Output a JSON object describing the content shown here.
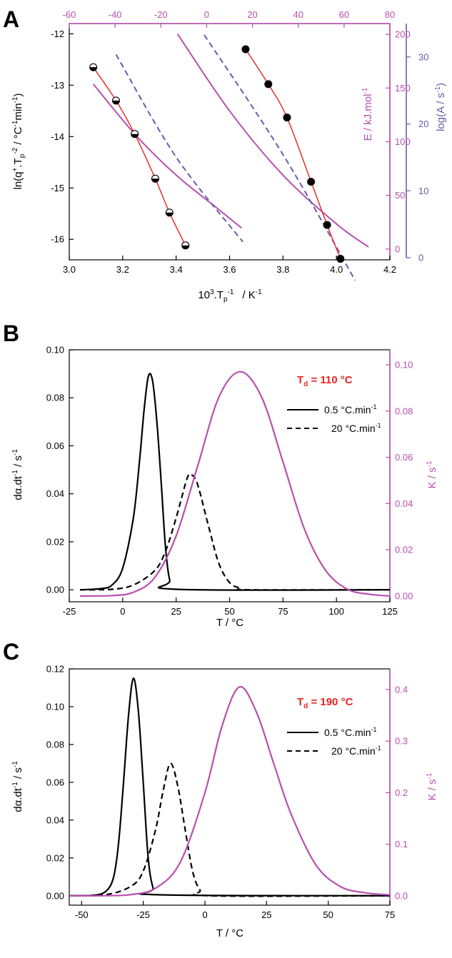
{
  "colors": {
    "axis": "#000000",
    "magenta": "#b84fb0",
    "purple": "#6a5aaa",
    "fit": "#e8231e",
    "highlight": "#e8231e"
  },
  "chart_data": [
    {
      "panel": "A",
      "type": "scatter",
      "xlabel": "10³.Tₚ⁻¹   /   K⁻¹",
      "ylabel": "ln(q⁺.Tₚ⁻² / °C⁻¹min⁻¹)",
      "y2label": "E  /  kJ.mol⁻¹",
      "y3label": "log(A / s⁻¹)",
      "xlim": [
        3.0,
        4.2
      ],
      "ylim": [
        -16.4,
        -11.8
      ],
      "x2lim": [
        -60,
        80
      ],
      "y2lim": [
        -10,
        210
      ],
      "y3lim": [
        0,
        35
      ],
      "xticks": [
        "3.0",
        "3.2",
        "3.4",
        "3.6",
        "3.8",
        "4.0",
        "4.2"
      ],
      "yticks": [
        "-12",
        "-13",
        "-14",
        "-15",
        "-16"
      ],
      "x2ticks": [
        "-60",
        "-40",
        "-20",
        "0",
        "20",
        "40",
        "60",
        "80"
      ],
      "y2ticks": [
        "0",
        "50",
        "100",
        "150",
        "200"
      ],
      "y3ticks": [
        "0",
        "10",
        "20",
        "30"
      ],
      "series": [
        {
          "marker": "half-filled",
          "x": [
            3.09,
            3.175,
            3.245,
            3.322,
            3.375,
            3.435
          ],
          "y": [
            -12.65,
            -13.3,
            -13.95,
            -14.82,
            -15.48,
            -16.12
          ]
        },
        {
          "marker": "filled",
          "x": [
            3.66,
            3.745,
            3.815,
            3.905,
            3.965,
            4.015
          ],
          "y": [
            -12.3,
            -12.98,
            -13.63,
            -14.88,
            -15.72,
            -16.38
          ]
        }
      ],
      "curves": [
        {
          "color": "magenta",
          "dash": false,
          "x": [
            3.09,
            3.25,
            3.4,
            3.55,
            3.645
          ],
          "y": [
            -12.98,
            -13.98,
            -14.75,
            -15.38,
            -15.78
          ]
        },
        {
          "color": "magenta",
          "dash": false,
          "x": [
            3.405,
            3.6,
            3.8,
            4.0,
            4.12
          ],
          "y": [
            -12.0,
            -13.5,
            -14.75,
            -15.7,
            -16.15
          ]
        },
        {
          "color": "purple",
          "dash": true,
          "x": [
            3.175,
            3.4,
            3.65
          ],
          "y": [
            -12.4,
            -14.4,
            -16.05
          ]
        },
        {
          "color": "purple",
          "dash": true,
          "x": [
            3.505,
            3.8,
            4.07
          ],
          "y": [
            -12.02,
            -14.35,
            -16.8
          ]
        }
      ]
    },
    {
      "panel": "B",
      "type": "line",
      "xlabel": "T   /   °C",
      "ylabel": "dα.dt⁻¹   /   s⁻¹",
      "y2label": "K  /  s⁻¹",
      "annotation": "Td = 110 °C",
      "xlim": [
        -25,
        125
      ],
      "ylim": [
        -0.005,
        0.1
      ],
      "y2lim": [
        -0.0025,
        0.1065
      ],
      "xticks": [
        "-25",
        "0",
        "25",
        "50",
        "75",
        "100",
        "125"
      ],
      "yticks": [
        "0.00",
        "0.02",
        "0.04",
        "0.06",
        "0.08",
        "0.10"
      ],
      "y2ticks": [
        "0.00",
        "0.02",
        "0.04",
        "0.06",
        "0.08",
        "0.10"
      ],
      "legend": [
        "0.5 °C.min⁻¹",
        "20 °C.min⁻¹"
      ],
      "series": [
        {
          "name": "0.5 °C.min⁻¹",
          "x": [
            -20,
            -10,
            -5,
            0,
            5,
            8,
            10,
            12,
            14,
            16,
            18,
            20,
            22,
            25,
            125
          ],
          "y": [
            0.0,
            0.0005,
            0.002,
            0.009,
            0.03,
            0.055,
            0.075,
            0.089,
            0.087,
            0.07,
            0.045,
            0.018,
            0.004,
            0.0002,
            0.0
          ]
        },
        {
          "name": "20 °C.min⁻¹",
          "x": [
            -20,
            -5,
            5,
            15,
            20,
            25,
            30,
            32,
            35,
            40,
            45,
            50,
            55,
            60,
            125
          ],
          "y": [
            0.0,
            0.0002,
            0.002,
            0.008,
            0.016,
            0.03,
            0.046,
            0.048,
            0.044,
            0.027,
            0.011,
            0.003,
            0.0007,
            0.0,
            0.0
          ]
        },
        {
          "name": "K",
          "axis": "right",
          "x": [
            -20,
            -5,
            5,
            15,
            25,
            35,
            45,
            55,
            65,
            75,
            85,
            95,
            105,
            115,
            125
          ],
          "y": [
            0.0,
            0.0002,
            0.0016,
            0.008,
            0.026,
            0.056,
            0.086,
            0.097,
            0.086,
            0.058,
            0.029,
            0.011,
            0.003,
            0.0008,
            0.0
          ]
        }
      ]
    },
    {
      "panel": "C",
      "type": "line",
      "xlabel": "T   /   °C",
      "ylabel": "dα.dt⁻¹   /   s⁻¹",
      "y2label": "K  /  s⁻¹",
      "annotation": "Td = 190 °C",
      "xlim": [
        -55,
        75
      ],
      "ylim": [
        -0.005,
        0.12
      ],
      "y2lim": [
        -0.018,
        0.44
      ],
      "xticks": [
        "-50",
        "-25",
        "0",
        "25",
        "50",
        "75"
      ],
      "yticks": [
        "0.00",
        "0.02",
        "0.04",
        "0.06",
        "0.08",
        "0.10",
        "0.12"
      ],
      "y2ticks": [
        "0.0",
        "0.1",
        "0.2",
        "0.3",
        "0.4"
      ],
      "legend": [
        "0.5 °C.min⁻¹",
        "20 °C.min⁻¹"
      ],
      "series": [
        {
          "name": "0.5 °C.min⁻¹",
          "x": [
            -55,
            -45,
            -40,
            -37,
            -35,
            -33,
            -31,
            -29,
            -27,
            -25,
            -23,
            -21,
            -19,
            75
          ],
          "y": [
            0.0,
            0.0003,
            0.0025,
            0.01,
            0.028,
            0.06,
            0.095,
            0.115,
            0.098,
            0.06,
            0.02,
            0.004,
            0.0005,
            0.0
          ]
        },
        {
          "name": "20 °C.min⁻¹",
          "x": [
            -55,
            -40,
            -30,
            -25,
            -20,
            -17,
            -14,
            -11,
            -8,
            -5,
            -2,
            2,
            75
          ],
          "y": [
            0.0,
            0.0006,
            0.005,
            0.013,
            0.035,
            0.055,
            0.07,
            0.058,
            0.035,
            0.013,
            0.003,
            0.0,
            0.0
          ]
        },
        {
          "name": "K",
          "axis": "right",
          "x": [
            -55,
            -40,
            -30,
            -20,
            -10,
            0,
            7,
            14,
            21,
            28,
            35,
            45,
            55,
            65,
            75
          ],
          "y": [
            0.0,
            0.0004,
            0.0025,
            0.015,
            0.065,
            0.2,
            0.33,
            0.405,
            0.355,
            0.255,
            0.158,
            0.06,
            0.018,
            0.006,
            0.002
          ]
        }
      ]
    }
  ],
  "panels": {
    "A": {
      "letter": "A",
      "xlabel_main": "10",
      "xlabel_sup1": "3",
      "xlabel_mid": ".T",
      "xlabel_sub": "p",
      "xlabel_sup2": "-1",
      "xlabel_units": "/   K",
      "xlabel_sup3": "-1",
      "ylabel_a": "ln(q",
      "ylabel_b": "+",
      "ylabel_c": ".T",
      "ylabel_d": "p",
      "ylabel_e": "-2",
      "ylabel_f": " / °C",
      "ylabel_g": "-1",
      "ylabel_h": "min",
      "ylabel_i": "-1",
      "ylabel_j": ")",
      "y2label_a": "E  /  kJ.mol",
      "y2label_b": "-1",
      "y3label_a": "log(A / s",
      "y3label_b": "-1",
      "y3label_c": ")"
    },
    "B": {
      "letter": "B",
      "annot_main": "T",
      "annot_sub": "d",
      "annot_rest": " = 110 °C",
      "leg1": "0.5 °C.min",
      "leg2": "20 °C.min",
      "leg_sup": "-1",
      "xlabel": "T   /   °C",
      "ylabel_a": "dα.dt",
      "ylabel_b": "-1",
      "ylabel_c": "   /   s",
      "ylabel_d": "-1",
      "y2label_a": "K  /  s",
      "y2label_b": "-1"
    },
    "C": {
      "letter": "C",
      "annot_main": "T",
      "annot_sub": "d",
      "annot_rest": " = 190 °C",
      "leg1": "0.5 °C.min",
      "leg2": "20 °C.min",
      "leg_sup": "-1",
      "xlabel": "T   /   °C",
      "ylabel_a": "dα.dt",
      "ylabel_b": "-1",
      "ylabel_c": "   /   s",
      "ylabel_d": "-1",
      "y2label_a": "K  /  s",
      "y2label_b": "-1"
    }
  }
}
